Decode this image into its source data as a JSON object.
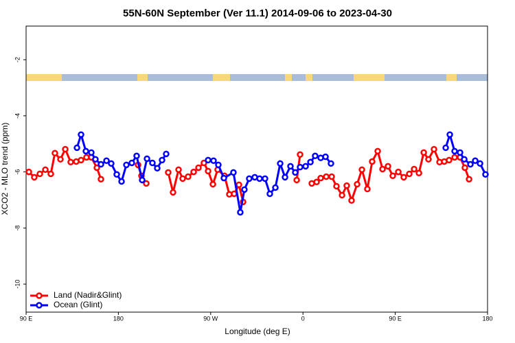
{
  "chart_data": {
    "type": "line",
    "title": "55N-60N September (Ver 11.1)   2014-09-06 to 2023-04-30",
    "x_label": "Longitude (deg E)",
    "y_label": "XCO2 - MLO trend (ppm)",
    "xlim": [
      90,
      540
    ],
    "xticks": [
      {
        "value": 90,
        "label": "90 E"
      },
      {
        "value": 180,
        "label": "180"
      },
      {
        "value": 270,
        "label": "90 W"
      },
      {
        "value": 360,
        "label": "0"
      },
      {
        "value": 450,
        "label": "90 E"
      },
      {
        "value": 540,
        "label": "180"
      }
    ],
    "ylim": [
      -11.0,
      -0.8
    ],
    "yticks": [
      -10,
      -8,
      -6,
      -4,
      -2
    ],
    "legend": "bottom-left",
    "series": [
      {
        "name": "Land (Nadir&Glint)",
        "color": "#ff0000",
        "x": [
          92.7,
          98.0,
          103.4,
          108.8,
          114.1,
          118.1,
          123.5,
          128.2,
          133.5,
          138.9,
          143.6,
          148.9,
          153.6,
          159.0,
          163.0,
          null,
          199.2,
          202.5,
          207.2,
          null,
          228.6,
          233.3,
          238.7,
          242.7,
          248.0,
          253.4,
          258.1,
          263.4,
          267.5,
          272.2,
          276.8,
          283.5,
          288.2,
          292.9,
          297.6,
          301.6,
          null,
          353.9,
          357.2,
          null,
          368.6,
          373.3,
          377.3,
          382.7,
          388.0,
          392.7,
          398.1,
          402.7,
          407.4,
          412.8,
          417.5,
          422.8,
          427.5,
          432.9,
          437.6,
          442.9,
          447.6,
          453.0,
          458.3,
          463.7,
          468.4,
          473.1,
          477.8,
          482.4,
          487.8,
          493.2,
          497.8,
          502.5,
          507.9,
          513.2,
          517.9,
          522.0
        ],
        "values": [
          -6.0,
          -6.19,
          -6.07,
          -5.92,
          -6.07,
          -5.33,
          -5.55,
          -5.19,
          -5.65,
          -5.63,
          -5.58,
          -5.48,
          -5.48,
          -5.85,
          -6.26,
          null,
          -5.75,
          -6.14,
          -6.41,
          null,
          -6.02,
          -6.73,
          -5.92,
          -6.24,
          -6.17,
          -6.0,
          -5.85,
          -5.68,
          -5.97,
          -6.44,
          -5.92,
          -6.14,
          -6.8,
          -6.78,
          -6.46,
          -7.07,
          null,
          -6.29,
          -5.38,
          null,
          -6.41,
          -6.36,
          -6.22,
          -6.17,
          -6.17,
          -6.51,
          -6.83,
          -6.49,
          -7.02,
          -6.44,
          -5.92,
          -6.61,
          -5.63,
          -5.26,
          -5.9,
          -5.8,
          -6.14,
          -6.0,
          -6.19,
          -6.07,
          -5.9,
          -6.04,
          -5.31,
          -5.55,
          -5.19,
          -5.65,
          -5.63,
          -5.58,
          -5.48,
          -5.48,
          -5.85,
          -6.26
        ]
      },
      {
        "name": "Ocean (Glint)",
        "color": "#0000ff",
        "x": [
          139.6,
          143.6,
          148.3,
          153.6,
          157.6,
          163.0,
          168.4,
          173.0,
          178.4,
          183.1,
          187.8,
          193.1,
          197.8,
          203.2,
          207.9,
          213.2,
          217.9,
          222.6,
          226.6,
          null,
          267.5,
          272.8,
          277.5,
          282.9,
          292.2,
          298.9,
          302.9,
          307.6,
          313.0,
          317.7,
          323.0,
          327.7,
          333.1,
          337.8,
          342.5,
          347.8,
          352.5,
          357.2,
          362.6,
          367.3,
          371.9,
          377.3,
          382.0,
          387.3,
          null,
          499.2,
          503.2,
          507.9,
          513.2,
          517.3,
          523.3,
          528.0,
          532.7,
          538.0
        ],
        "values": [
          -5.14,
          -4.67,
          -5.26,
          -5.31,
          -5.55,
          -5.73,
          -5.6,
          -5.7,
          -6.09,
          -6.34,
          -5.75,
          -5.68,
          -5.43,
          -6.29,
          -5.53,
          -5.68,
          -5.87,
          -5.58,
          -5.36,
          null,
          -5.58,
          -5.6,
          -5.75,
          -6.22,
          -6.02,
          -7.44,
          -6.63,
          -6.24,
          -6.19,
          -6.24,
          -6.24,
          -6.78,
          -6.56,
          -5.7,
          -6.19,
          -5.8,
          -6.02,
          -5.83,
          -5.8,
          -5.65,
          -5.43,
          -5.5,
          -5.46,
          -5.7,
          null,
          -5.14,
          -4.67,
          -5.26,
          -5.31,
          -5.55,
          -5.73,
          -5.6,
          -5.7,
          -6.09
        ]
      }
    ]
  }
}
